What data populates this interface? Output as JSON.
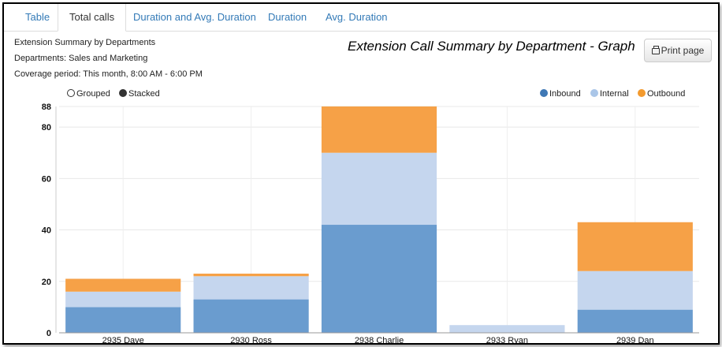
{
  "tabs": [
    {
      "label": "Table"
    },
    {
      "label": "Total calls"
    },
    {
      "label": "Duration and Avg. Duration"
    },
    {
      "label": "Duration"
    },
    {
      "label": "Avg. Duration"
    }
  ],
  "info": {
    "line1": "Extension Summary by Departments",
    "line2": "Departments: Sales and Marketing",
    "line3": "Coverage period: This month, 8:00 AM - 6:00 PM"
  },
  "graph_title": "Extension Call Summary by Department - Graph",
  "print_button": {
    "label": "Print page",
    "icon": "printer-icon"
  },
  "mode_toggle": {
    "grouped": "Grouped",
    "stacked": "Stacked",
    "selected": "Stacked"
  },
  "chart_data": {
    "type": "bar",
    "stacked": true,
    "title": "",
    "xlabel": "",
    "ylabel": "",
    "categories": [
      "2935 Dave",
      "2930 Ross",
      "2938 Charlie",
      "2933 Ryan",
      "2939 Dan"
    ],
    "series": [
      {
        "name": "Inbound",
        "color": "#6a9ccf",
        "values": [
          10,
          13,
          42,
          0,
          9
        ]
      },
      {
        "name": "Internal",
        "color": "#c5d6ee",
        "values": [
          6,
          9,
          28,
          3,
          15
        ]
      },
      {
        "name": "Outbound",
        "color": "#f6a147",
        "values": [
          5,
          1,
          18,
          0,
          19
        ]
      }
    ],
    "legend_colors": [
      "#3f78b5",
      "#aac6e8",
      "#f39a2e"
    ],
    "ylim": [
      0,
      88
    ],
    "yticks": [
      0,
      20,
      40,
      60,
      80,
      88
    ],
    "legend_position": "top-right",
    "grid": true
  }
}
